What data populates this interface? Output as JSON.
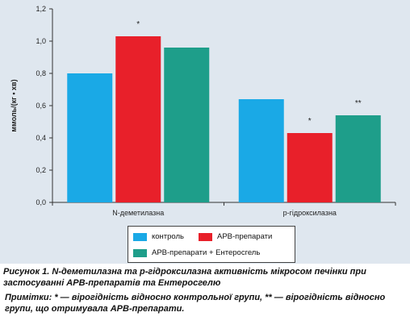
{
  "chart_data": {
    "type": "bar",
    "categories": [
      "N-деметилазна",
      "р-гідроксилазна"
    ],
    "series": [
      {
        "name": "контроль",
        "color": "#1aa9e6",
        "values": [
          0.8,
          0.64
        ]
      },
      {
        "name": "АРВ-препарати",
        "color": "#e8202a",
        "values": [
          1.03,
          0.43
        ]
      },
      {
        "name": "АРВ-препарати  + Ентеросгель",
        "color": "#1e9e8a",
        "values": [
          0.96,
          0.54
        ]
      }
    ],
    "annotations": [
      {
        "category": 0,
        "series": 1,
        "text": "*"
      },
      {
        "category": 1,
        "series": 1,
        "text": "*"
      },
      {
        "category": 1,
        "series": 2,
        "text": "**"
      }
    ],
    "ylabel": "ммоль/(кг • хв)",
    "ylim": [
      0,
      1.2
    ],
    "yticks": [
      "0,0",
      "0,2",
      "0,4",
      "0,6",
      "0,8",
      "1,0",
      "1,2"
    ],
    "grid": false,
    "legend_position": "bottom-center"
  },
  "caption": {
    "title": "Рисунок 1. N-деметилазна та р-гідроксилазна активність мікросом печінки при застосуванні АРВ-препаратів та Ентеросгелю",
    "note": "Примітки: * — вірогідність відносно контрольної групи, ** — вірогідність відносно групи, що отримувала АРВ-препарати."
  }
}
